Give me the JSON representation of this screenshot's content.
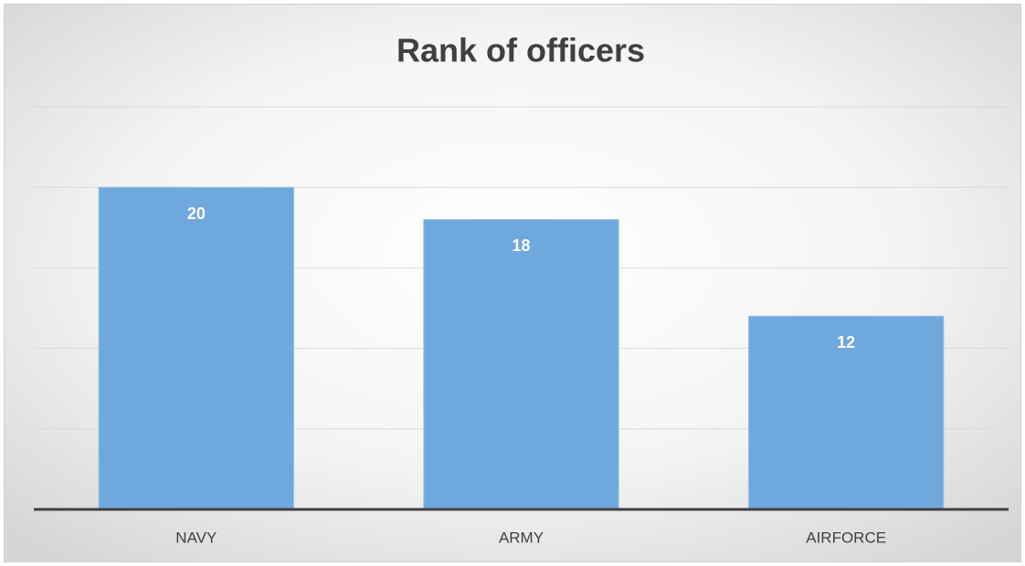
{
  "chart_data": {
    "type": "bar",
    "title": "Rank of officers",
    "categories": [
      "NAVY",
      "ARMY",
      "AIRFORCE"
    ],
    "values": [
      20,
      18,
      12
    ],
    "color": "#6fa8dc",
    "ylim": [
      0,
      25
    ],
    "yticks": [
      0,
      5,
      10,
      15,
      20,
      25
    ],
    "grid": true
  }
}
